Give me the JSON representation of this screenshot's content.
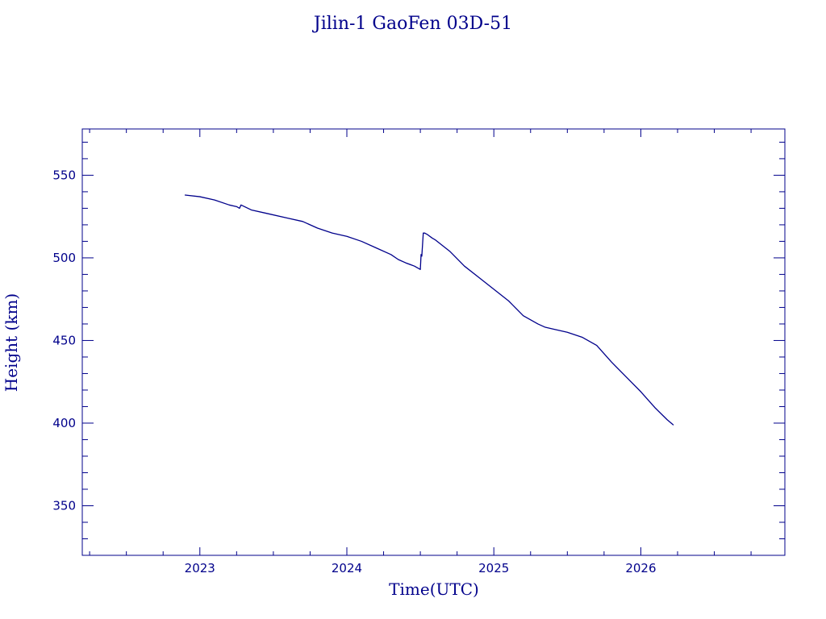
{
  "chart_data": {
    "type": "line",
    "title": "Jilin-1 GaoFen 03D-51",
    "xlabel": "Time(UTC)",
    "ylabel": "Height (km)",
    "xlim": [
      2022.2,
      2026.98
    ],
    "ylim": [
      320,
      578
    ],
    "x_ticks": [
      2023,
      2024,
      2025,
      2026
    ],
    "y_ticks": [
      350,
      400,
      450,
      500,
      550
    ],
    "x_minor_step": 0.25,
    "y_minor_step": 10,
    "grid": false,
    "legend": "none",
    "color": "#00008b",
    "series": [
      {
        "x": [
          2022.9,
          2023.0,
          2023.1,
          2023.2,
          2023.25,
          2023.27,
          2023.28,
          2023.35,
          2023.45,
          2023.6,
          2023.7,
          2023.8,
          2023.9,
          2024.0,
          2024.1,
          2024.2,
          2024.3,
          2024.35,
          2024.4,
          2024.46,
          2024.5,
          2024.505,
          2024.51,
          2024.52,
          2024.53,
          2024.55,
          2024.58,
          2024.6,
          2024.7,
          2024.8,
          2024.9,
          2025.0,
          2025.1,
          2025.2,
          2025.3,
          2025.35,
          2025.4,
          2025.5,
          2025.6,
          2025.7,
          2025.75,
          2025.8,
          2025.9,
          2026.0,
          2026.1,
          2026.18,
          2026.22
        ],
        "y": [
          538,
          537,
          535,
          532,
          531,
          530,
          532,
          529,
          527,
          524,
          522,
          518,
          515,
          513,
          510,
          506,
          502,
          499,
          497,
          495,
          493,
          502,
          501,
          515,
          515,
          514,
          512,
          511,
          504,
          495,
          488,
          481,
          474,
          465,
          460,
          458,
          457,
          455,
          452,
          447,
          442,
          437,
          428,
          419,
          409,
          402,
          399
        ]
      }
    ]
  }
}
